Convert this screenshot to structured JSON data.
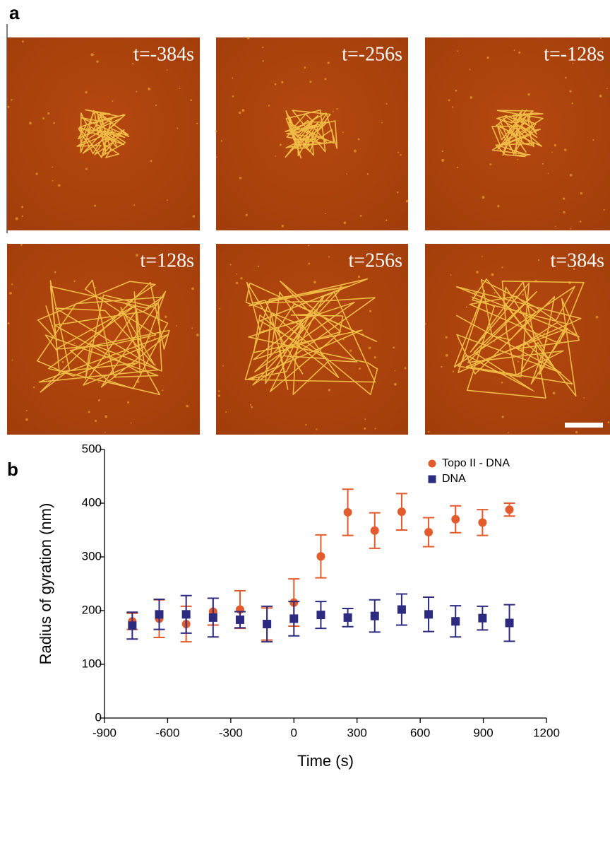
{
  "panel_a": {
    "label": "a",
    "frames": [
      "t=-384s",
      "t=-256s",
      "t=-128s",
      "t=128s",
      "t=256s",
      "t=384s"
    ]
  },
  "chart_data": {
    "type": "scatter",
    "panel_label": "b",
    "x_label": "Time (s)",
    "y_label": "Radius of gyration (nm)",
    "xlim": [
      -900,
      1200
    ],
    "ylim": [
      0,
      500
    ],
    "xticks": [
      -900,
      -600,
      -300,
      0,
      300,
      600,
      900,
      1200
    ],
    "yticks": [
      0,
      100,
      200,
      300,
      400,
      500
    ],
    "legend": "upper right",
    "x": [
      -768,
      -640,
      -512,
      -384,
      -256,
      -128,
      0,
      128,
      256,
      384,
      512,
      640,
      768,
      896,
      1024
    ],
    "series": [
      {
        "name": "Topo II - DNA",
        "color": "#e35b2c",
        "marker": "circle",
        "values": [
          180,
          185,
          175,
          198,
          202,
          175,
          215,
          301,
          383,
          349,
          384,
          346,
          370,
          364,
          388
        ],
        "errors": [
          15,
          35,
          33,
          25,
          35,
          30,
          44,
          40,
          43,
          33,
          34,
          27,
          25,
          24,
          12
        ]
      },
      {
        "name": "DNA",
        "color": "#2d2b80",
        "marker": "square",
        "values": [
          172,
          193,
          193,
          187,
          183,
          175,
          185,
          192,
          187,
          190,
          202,
          193,
          180,
          186,
          177
        ],
        "errors": [
          25,
          28,
          35,
          36,
          15,
          33,
          32,
          25,
          17,
          30,
          29,
          32,
          29,
          22,
          34
        ]
      }
    ]
  }
}
